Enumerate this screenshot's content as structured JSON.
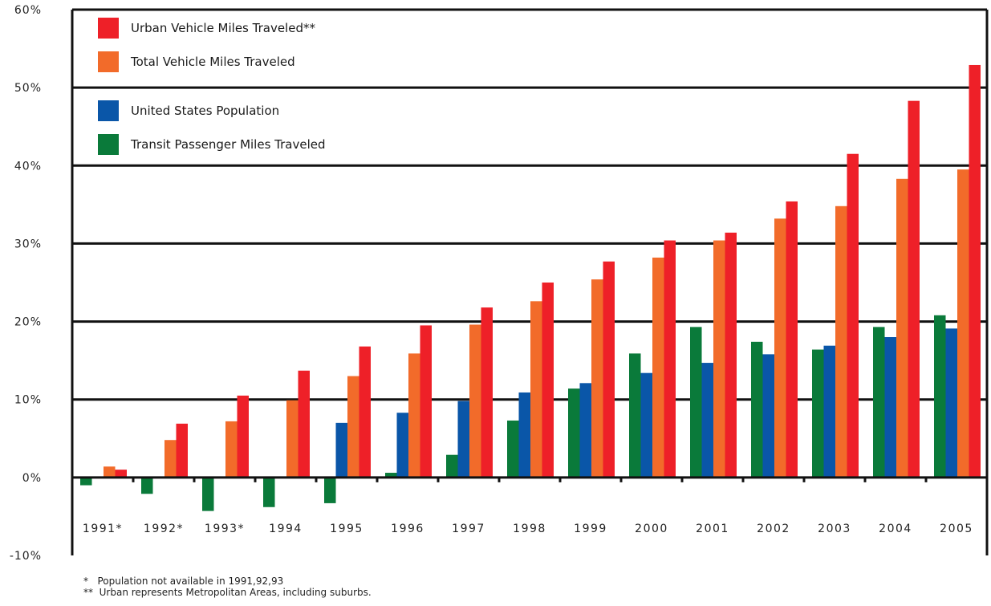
{
  "chart_data": {
    "type": "bar",
    "categories": [
      "1991*",
      "1992*",
      "1993*",
      "1994",
      "1995",
      "1996",
      "1997",
      "1998",
      "1999",
      "2000",
      "2001",
      "2002",
      "2003",
      "2004",
      "2005"
    ],
    "series": [
      {
        "name": "Transit Passenger Miles Traveled",
        "color": "#0a7a3a",
        "values": [
          -1.0,
          -2.1,
          -4.3,
          -3.8,
          -3.3,
          0.6,
          2.9,
          7.3,
          11.4,
          15.9,
          19.3,
          17.4,
          16.4,
          19.3,
          20.8
        ]
      },
      {
        "name": "United States Population",
        "color": "#0a56a8",
        "values": [
          null,
          null,
          null,
          null,
          7.0,
          8.3,
          9.8,
          10.9,
          12.1,
          13.4,
          14.7,
          15.8,
          16.9,
          18.0,
          19.1
        ]
      },
      {
        "name": "Total Vehicle Miles Traveled",
        "color": "#f26b2a",
        "values": [
          1.4,
          4.8,
          7.2,
          9.9,
          13.0,
          15.9,
          19.6,
          22.6,
          25.4,
          28.2,
          30.4,
          33.2,
          34.8,
          38.3,
          39.5
        ]
      },
      {
        "name": "Urban Vehicle Miles Traveled**",
        "color": "#ee2028",
        "values": [
          1.0,
          6.9,
          10.5,
          13.7,
          16.8,
          19.5,
          21.8,
          25.0,
          27.7,
          30.4,
          31.4,
          35.4,
          41.5,
          48.3,
          52.9
        ]
      }
    ],
    "legend_order": [
      "Urban Vehicle Miles Traveled**",
      "Total Vehicle Miles Traveled",
      "United States Population",
      "Transit Passenger Miles Traveled"
    ],
    "y_ticks": [
      "60%",
      "50%",
      "40%",
      "30%",
      "20%",
      "10%",
      "0%",
      "-10%"
    ],
    "ylim": [
      -10,
      60
    ],
    "grid": true,
    "legend_position": "top-left",
    "title": "",
    "xlabel": "",
    "ylabel": ""
  },
  "footnotes": [
    "*   Population not available in 1991,92,93",
    "**  Urban represents Metropolitan Areas, including suburbs."
  ]
}
